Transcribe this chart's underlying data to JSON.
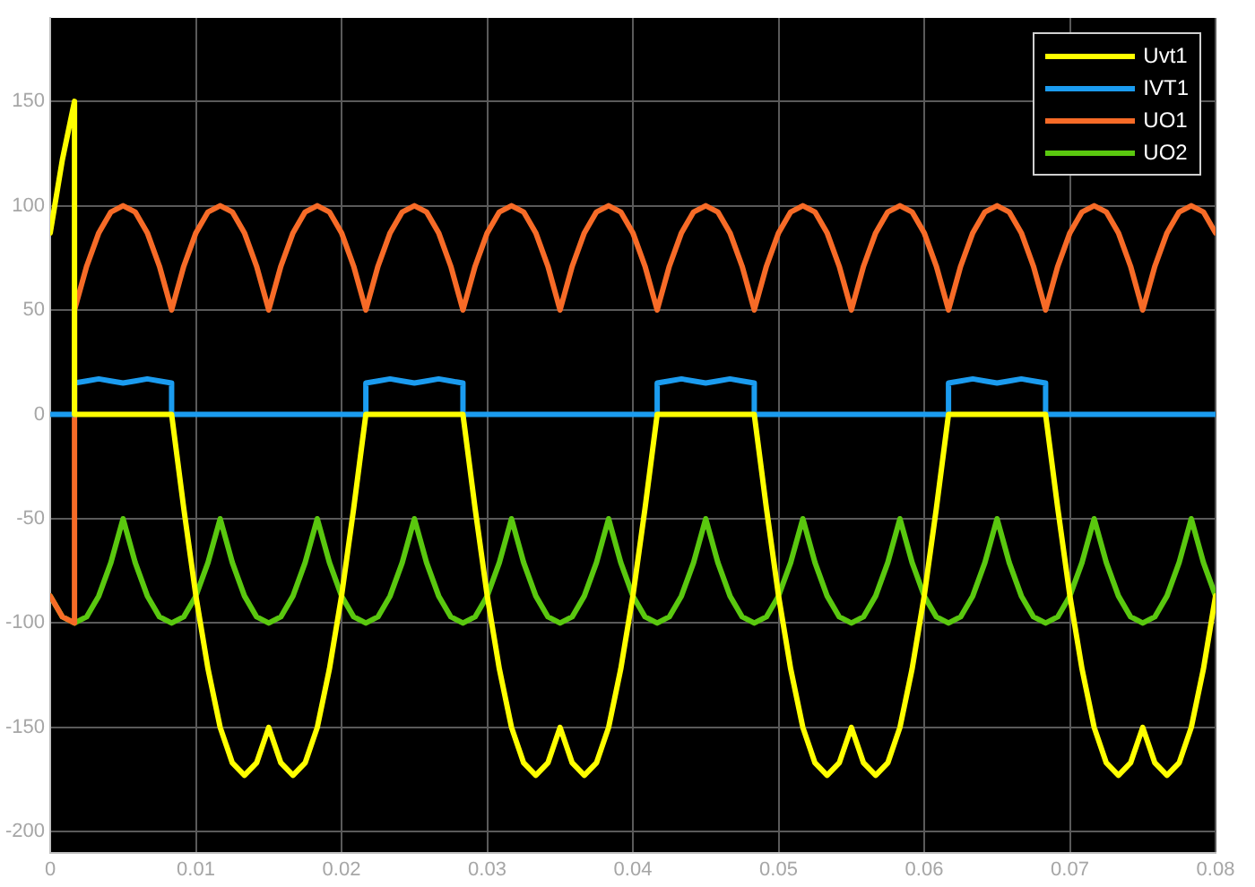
{
  "chart_data": {
    "type": "line",
    "x": [
      0,
      0.000833,
      0.001667,
      0.001667,
      0.0025,
      0.003333,
      0.004167,
      0.005,
      0.005833,
      0.006667,
      0.0075,
      0.008333,
      0.008333,
      0.009167,
      0.01,
      0.010833,
      0.011667,
      0.0125,
      0.013333,
      0.014167,
      0.015,
      0.015833,
      0.016667,
      0.0175,
      0.018333,
      0.019167,
      0.02,
      0.020833,
      0.021667,
      0.021667,
      0.0225,
      0.023333,
      0.024167,
      0.025,
      0.025833,
      0.026667,
      0.0275,
      0.028333,
      0.028333,
      0.029167,
      0.03,
      0.030833,
      0.031667,
      0.0325,
      0.033333,
      0.034167,
      0.035,
      0.035833,
      0.036667,
      0.0375,
      0.038333,
      0.039167,
      0.04,
      0.040833,
      0.041667,
      0.041667,
      0.0425,
      0.043333,
      0.044167,
      0.045,
      0.045833,
      0.046667,
      0.0475,
      0.048333,
      0.048333,
      0.049167,
      0.05,
      0.050833,
      0.051667,
      0.0525,
      0.053333,
      0.054167,
      0.055,
      0.055833,
      0.056667,
      0.0575,
      0.058333,
      0.059167,
      0.06,
      0.060833,
      0.061667,
      0.061667,
      0.0625,
      0.063333,
      0.064167,
      0.065,
      0.065833,
      0.066667,
      0.0675,
      0.068333,
      0.068333,
      0.069167,
      0.07,
      0.070833,
      0.071667,
      0.0725,
      0.073333,
      0.074167,
      0.075,
      0.075833,
      0.076667,
      0.0775,
      0.078333,
      0.079167,
      0.08
    ],
    "series": [
      {
        "name": "Uvt1",
        "color": "#ffff00",
        "values": [
          87,
          122,
          150,
          0,
          0,
          0,
          0,
          0,
          0,
          0,
          0,
          0,
          0,
          -45,
          -87,
          -122,
          -150,
          -167,
          -173,
          -167,
          -150,
          -167,
          -173,
          -167,
          -150,
          -122,
          -87,
          -45,
          0,
          0,
          0,
          0,
          0,
          0,
          0,
          0,
          0,
          0,
          0,
          -45,
          -87,
          -122,
          -150,
          -167,
          -173,
          -167,
          -150,
          -167,
          -173,
          -167,
          -150,
          -122,
          -87,
          -45,
          0,
          0,
          0,
          0,
          0,
          0,
          0,
          0,
          0,
          0,
          0,
          -45,
          -87,
          -122,
          -150,
          -167,
          -173,
          -167,
          -150,
          -167,
          -173,
          -167,
          -150,
          -122,
          -87,
          -45,
          0,
          0,
          0,
          0,
          0,
          0,
          0,
          0,
          0,
          0,
          0,
          -45,
          -87,
          -122,
          -150,
          -167,
          -173,
          -167,
          -150,
          -167,
          -173,
          -167,
          -150,
          -122,
          -87
        ]
      },
      {
        "name": "IVT1",
        "color": "#1b9cf0",
        "values": [
          0,
          0,
          0,
          15,
          16,
          17,
          16,
          15,
          16,
          17,
          16,
          15,
          0,
          0,
          0,
          0,
          0,
          0,
          0,
          0,
          0,
          0,
          0,
          0,
          0,
          0,
          0,
          0,
          0,
          15,
          16,
          17,
          16,
          15,
          16,
          17,
          16,
          15,
          0,
          0,
          0,
          0,
          0,
          0,
          0,
          0,
          0,
          0,
          0,
          0,
          0,
          0,
          0,
          0,
          0,
          15,
          16,
          17,
          16,
          15,
          16,
          17,
          16,
          15,
          0,
          0,
          0,
          0,
          0,
          0,
          0,
          0,
          0,
          0,
          0,
          0,
          0,
          0,
          0,
          0,
          0,
          15,
          16,
          17,
          16,
          15,
          16,
          17,
          16,
          15,
          0,
          0,
          0,
          0,
          0,
          0,
          0,
          0,
          0,
          0,
          0,
          0,
          0,
          0,
          0
        ]
      },
      {
        "name": "UO1",
        "color": "#f76b27",
        "values": [
          -87,
          -97,
          -100,
          50,
          71,
          87,
          97,
          100,
          97,
          87,
          71,
          50,
          50,
          71,
          87,
          97,
          100,
          97,
          87,
          71,
          50,
          71,
          87,
          97,
          100,
          97,
          87,
          71,
          50,
          50,
          71,
          87,
          97,
          100,
          97,
          87,
          71,
          50,
          50,
          71,
          87,
          97,
          100,
          97,
          87,
          71,
          50,
          71,
          87,
          97,
          100,
          97,
          87,
          71,
          50,
          50,
          71,
          87,
          97,
          100,
          97,
          87,
          71,
          50,
          50,
          71,
          87,
          97,
          100,
          97,
          87,
          71,
          50,
          71,
          87,
          97,
          100,
          97,
          87,
          71,
          50,
          50,
          71,
          87,
          97,
          100,
          97,
          87,
          71,
          50,
          50,
          71,
          87,
          97,
          100,
          97,
          87,
          71,
          50,
          71,
          87,
          97,
          100,
          97,
          87
        ]
      },
      {
        "name": "UO2",
        "color": "#5ac80f",
        "values": [
          -87,
          -97,
          -100,
          -100,
          -97,
          -87,
          -71,
          -50,
          -71,
          -87,
          -97,
          -100,
          -100,
          -97,
          -87,
          -71,
          -50,
          -71,
          -87,
          -97,
          -100,
          -97,
          -87,
          -71,
          -50,
          -71,
          -87,
          -97,
          -100,
          -100,
          -97,
          -87,
          -71,
          -50,
          -71,
          -87,
          -97,
          -100,
          -100,
          -97,
          -87,
          -71,
          -50,
          -71,
          -87,
          -97,
          -100,
          -97,
          -87,
          -71,
          -50,
          -71,
          -87,
          -97,
          -100,
          -100,
          -97,
          -87,
          -71,
          -50,
          -71,
          -87,
          -97,
          -100,
          -100,
          -97,
          -87,
          -71,
          -50,
          -71,
          -87,
          -97,
          -100,
          -97,
          -87,
          -71,
          -50,
          -71,
          -87,
          -97,
          -100,
          -100,
          -97,
          -87,
          -71,
          -50,
          -71,
          -87,
          -97,
          -100,
          -100,
          -97,
          -87,
          -71,
          -50,
          -71,
          -87,
          -97,
          -100,
          -97,
          -87,
          -71,
          -50,
          -71,
          -87
        ]
      }
    ],
    "xlim": [
      0,
      0.08
    ],
    "xticks": [
      0,
      0.01,
      0.02,
      0.03,
      0.04,
      0.05,
      0.06,
      0.07,
      0.08
    ],
    "ylim": [
      -210,
      190
    ],
    "yticks": [
      -200,
      -150,
      -100,
      -50,
      0,
      50,
      100,
      150
    ],
    "grid": true,
    "legend": "top right"
  }
}
